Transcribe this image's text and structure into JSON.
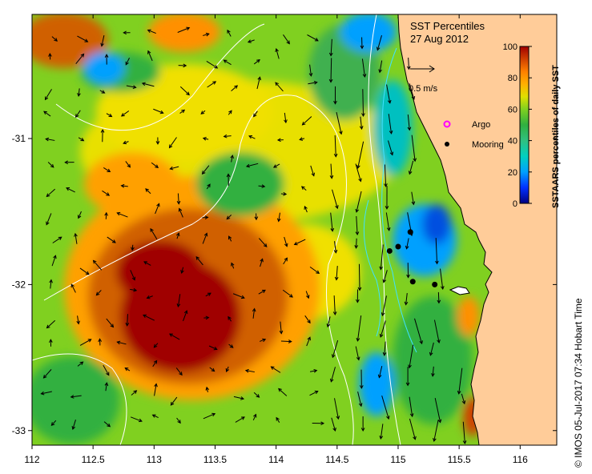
{
  "map": {
    "title_line1": "SST Percentiles",
    "title_line2": "27 Aug 2012",
    "scale_arrow_label": "0.5 m/s",
    "legend": [
      {
        "label": "Argo",
        "marker": "magenta-circle",
        "color": "#ff00ff"
      },
      {
        "label": "Mooring",
        "marker": "black-dot",
        "color": "#000000"
      }
    ],
    "credit": "© IMOS 05-Jul-2017 07:34 Hobart Time",
    "x_axis": {
      "ticks": [
        "112",
        "112.5",
        "113",
        "113.5",
        "114",
        "114.5",
        "115",
        "115.5",
        "116"
      ],
      "min": 112,
      "max": 116.3
    },
    "y_axis": {
      "ticks": [
        "-31",
        "-32",
        "-33"
      ],
      "min": -33.1,
      "max": -30.15
    },
    "colorbar": {
      "label": "SSTAARS percentiles of daily SST",
      "ticks": [
        "0",
        "20",
        "40",
        "60",
        "80",
        "100"
      ],
      "colors": [
        "#000080",
        "#0030ff",
        "#00a0ff",
        "#00d0c0",
        "#30c080",
        "#30b040",
        "#80d020",
        "#e0e000",
        "#ffb000",
        "#ff8000",
        "#d04000",
        "#a00000"
      ]
    },
    "land_color": "#ffcc99",
    "moorings": [
      {
        "lon": 114.93,
        "lat": -31.77
      },
      {
        "lon": 115.0,
        "lat": -31.74
      },
      {
        "lon": 115.1,
        "lat": -31.64
      },
      {
        "lon": 115.12,
        "lat": -31.98
      },
      {
        "lon": 115.3,
        "lat": -32.0
      }
    ]
  }
}
